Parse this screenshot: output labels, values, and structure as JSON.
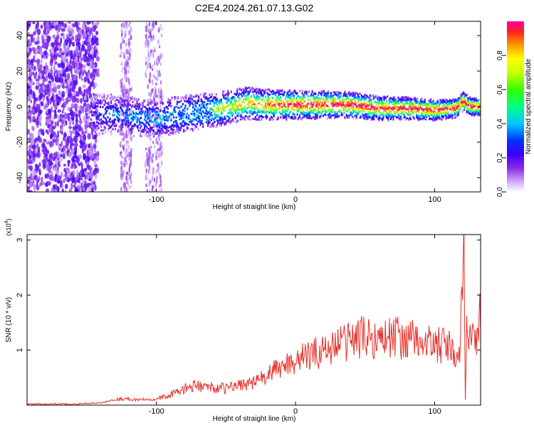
{
  "title": "C2E4.2024.261.07.13.G02",
  "chart_data": [
    {
      "type": "heatmap",
      "xlabel": "Height of straight line (km)",
      "ylabel": "Frequency (Hz)",
      "xlim": [
        -193,
        133
      ],
      "ylim": [
        -48,
        48
      ],
      "x_ticks": [
        -100,
        0,
        100
      ],
      "y_ticks": [
        -40,
        -20,
        0,
        20,
        40
      ],
      "colorbar": {
        "label": "Normalized spectral amplitude",
        "range": [
          0,
          1
        ],
        "ticks": [
          "0.0",
          "0.2",
          "0.4",
          "0.6",
          "0.8"
        ]
      },
      "ridge": {
        "x": [
          -147,
          -130,
          -115,
          -100,
          -80,
          -60,
          -45,
          -35,
          -25,
          -15,
          0,
          20,
          40,
          60,
          80,
          100,
          115,
          121,
          125,
          133
        ],
        "y": [
          -5,
          -4,
          -6,
          -7,
          -4,
          -2,
          0,
          2,
          1,
          1,
          1,
          1,
          1,
          -1,
          -1,
          -2,
          -1,
          3,
          0,
          0
        ]
      }
    },
    {
      "type": "line",
      "xlabel": "Height of straight line (km)",
      "ylabel": "SNR (10 * v/v)",
      "y_multiplier": "(x10",
      "y_multiplier_exp": "4",
      "y_multiplier_close": ")",
      "xlim": [
        -193,
        133
      ],
      "ylim": [
        0,
        3.1
      ],
      "x_ticks": [
        -100,
        0,
        100
      ],
      "y_ticks": [
        1,
        2,
        3
      ],
      "series": [
        {
          "color": "#e8302a",
          "x": [
            -193,
            -160,
            -140,
            -125,
            -115,
            -100,
            -90,
            -80,
            -70,
            -60,
            -50,
            -40,
            -30,
            -20,
            -10,
            0,
            10,
            20,
            30,
            40,
            50,
            60,
            70,
            80,
            90,
            100,
            110,
            118,
            121,
            122,
            123,
            124,
            126,
            130,
            133
          ],
          "y": [
            0.02,
            0.02,
            0.04,
            0.12,
            0.1,
            0.12,
            0.18,
            0.3,
            0.35,
            0.32,
            0.3,
            0.38,
            0.4,
            0.55,
            0.7,
            0.82,
            0.9,
            1.0,
            1.1,
            1.2,
            1.25,
            1.2,
            1.25,
            1.2,
            1.15,
            1.1,
            1.05,
            0.8,
            3.05,
            0.1,
            1.6,
            1.4,
            1.3,
            1.2,
            1.65
          ]
        }
      ]
    }
  ]
}
